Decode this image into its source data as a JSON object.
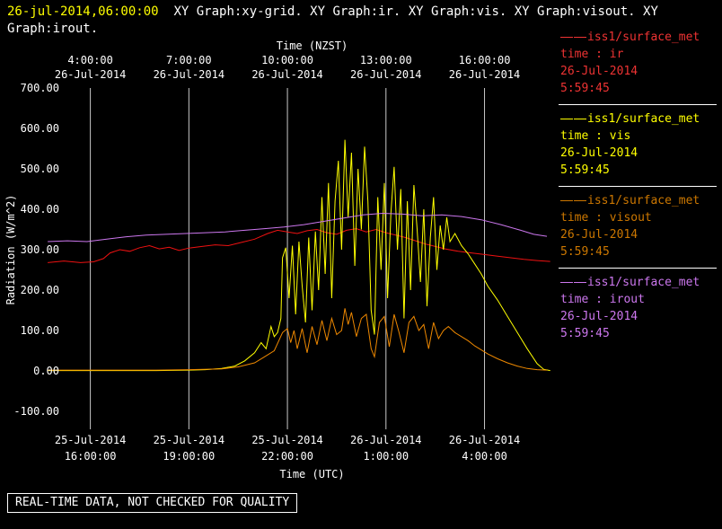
{
  "header": {
    "timestamp": "26-jul-2014,06:00:00",
    "title_rest_line1": "XY Graph:xy-grid.  XY Graph:ir.  XY Graph:vis.  XY Graph:visout.  XY",
    "title_line2": "Graph:irout."
  },
  "colors": {
    "background": "#000000",
    "text": "#ffffff",
    "timestamp": "#ffff00",
    "grid": "#c8c8c8",
    "ir": "#ee1111",
    "vis": "#ffff00",
    "visout": "#ee8800",
    "irout": "#cc77ee"
  },
  "chart_data": {
    "type": "line",
    "grid": true,
    "top_axis": {
      "label": "Time (NZST)",
      "tick_times": [
        "4:00:00",
        "7:00:00",
        "10:00:00",
        "13:00:00",
        "16:00:00"
      ],
      "tick_dates": [
        "26-Jul-2014",
        "26-Jul-2014",
        "26-Jul-2014",
        "26-Jul-2014",
        "26-Jul-2014"
      ]
    },
    "bottom_axis": {
      "label": "Time (UTC)",
      "tick_times": [
        "16:00:00",
        "19:00:00",
        "22:00:00",
        "1:00:00",
        "4:00:00"
      ],
      "tick_dates": [
        "25-Jul-2014",
        "25-Jul-2014",
        "25-Jul-2014",
        "26-Jul-2014",
        "26-Jul-2014"
      ]
    },
    "y_axis": {
      "label": "Radiation  (W/m^2)",
      "tick_values": [
        700,
        600,
        500,
        400,
        300,
        200,
        100,
        0,
        -100
      ],
      "tick_labels": [
        "700.00",
        "600.00",
        "500.00",
        "400.00",
        "300.00",
        "200.00",
        "100.00",
        "0.00",
        "-100.00"
      ],
      "ylim": [
        -100,
        700
      ]
    },
    "x_domain_hours_utc": [
      15.3,
      30.2
    ],
    "gridline_hours_utc": [
      16,
      19,
      22,
      25,
      28
    ],
    "series": [
      {
        "name": "ir",
        "color": "#ee1111",
        "points": [
          [
            14.7,
            268
          ],
          [
            15.2,
            272
          ],
          [
            15.7,
            268
          ],
          [
            16.1,
            270
          ],
          [
            16.4,
            278
          ],
          [
            16.6,
            292
          ],
          [
            16.9,
            300
          ],
          [
            17.2,
            296
          ],
          [
            17.5,
            305
          ],
          [
            17.8,
            310
          ],
          [
            18.1,
            302
          ],
          [
            18.4,
            306
          ],
          [
            18.7,
            298
          ],
          [
            19.0,
            304
          ],
          [
            19.4,
            308
          ],
          [
            19.8,
            312
          ],
          [
            20.2,
            310
          ],
          [
            20.6,
            318
          ],
          [
            21.0,
            326
          ],
          [
            21.4,
            340
          ],
          [
            21.7,
            348
          ],
          [
            22.0,
            344
          ],
          [
            22.3,
            340
          ],
          [
            22.6,
            347
          ],
          [
            22.9,
            350
          ],
          [
            23.2,
            342
          ],
          [
            23.5,
            338
          ],
          [
            23.8,
            348
          ],
          [
            24.1,
            352
          ],
          [
            24.4,
            344
          ],
          [
            24.7,
            350
          ],
          [
            25.0,
            342
          ],
          [
            25.3,
            336
          ],
          [
            25.6,
            330
          ],
          [
            25.9,
            322
          ],
          [
            26.2,
            314
          ],
          [
            26.5,
            308
          ],
          [
            26.8,
            302
          ],
          [
            27.2,
            296
          ],
          [
            27.6,
            292
          ],
          [
            28.0,
            288
          ],
          [
            28.4,
            284
          ],
          [
            28.8,
            280
          ],
          [
            29.2,
            276
          ],
          [
            29.6,
            273
          ],
          [
            30.0,
            271
          ]
        ]
      },
      {
        "name": "vis",
        "color": "#ffff00",
        "points": [
          [
            14.7,
            1
          ],
          [
            16.0,
            1
          ],
          [
            17.0,
            1
          ],
          [
            18.0,
            1
          ],
          [
            19.0,
            2
          ],
          [
            19.5,
            3
          ],
          [
            20.0,
            6
          ],
          [
            20.4,
            12
          ],
          [
            20.7,
            25
          ],
          [
            21.0,
            45
          ],
          [
            21.2,
            70
          ],
          [
            21.35,
            55
          ],
          [
            21.5,
            110
          ],
          [
            21.6,
            85
          ],
          [
            21.7,
            95
          ],
          [
            21.8,
            130
          ],
          [
            21.85,
            280
          ],
          [
            21.95,
            305
          ],
          [
            22.05,
            180
          ],
          [
            22.15,
            310
          ],
          [
            22.25,
            140
          ],
          [
            22.35,
            320
          ],
          [
            22.45,
            210
          ],
          [
            22.55,
            120
          ],
          [
            22.65,
            330
          ],
          [
            22.75,
            150
          ],
          [
            22.85,
            345
          ],
          [
            22.95,
            200
          ],
          [
            23.05,
            430
          ],
          [
            23.15,
            240
          ],
          [
            23.25,
            465
          ],
          [
            23.35,
            180
          ],
          [
            23.45,
            420
          ],
          [
            23.55,
            520
          ],
          [
            23.65,
            300
          ],
          [
            23.75,
            572
          ],
          [
            23.85,
            380
          ],
          [
            23.95,
            540
          ],
          [
            24.05,
            260
          ],
          [
            24.15,
            500
          ],
          [
            24.25,
            350
          ],
          [
            24.35,
            555
          ],
          [
            24.45,
            420
          ],
          [
            24.55,
            150
          ],
          [
            24.65,
            90
          ],
          [
            24.75,
            430
          ],
          [
            24.85,
            250
          ],
          [
            24.95,
            465
          ],
          [
            25.05,
            180
          ],
          [
            25.15,
            390
          ],
          [
            25.25,
            505
          ],
          [
            25.35,
            300
          ],
          [
            25.45,
            450
          ],
          [
            25.55,
            130
          ],
          [
            25.65,
            420
          ],
          [
            25.75,
            200
          ],
          [
            25.85,
            460
          ],
          [
            25.95,
            350
          ],
          [
            26.05,
            220
          ],
          [
            26.15,
            400
          ],
          [
            26.25,
            160
          ],
          [
            26.35,
            330
          ],
          [
            26.45,
            430
          ],
          [
            26.55,
            250
          ],
          [
            26.65,
            360
          ],
          [
            26.75,
            300
          ],
          [
            26.85,
            380
          ],
          [
            26.95,
            320
          ],
          [
            27.1,
            340
          ],
          [
            27.3,
            310
          ],
          [
            27.5,
            290
          ],
          [
            27.7,
            265
          ],
          [
            27.9,
            240
          ],
          [
            28.1,
            210
          ],
          [
            28.4,
            175
          ],
          [
            28.7,
            135
          ],
          [
            29.0,
            95
          ],
          [
            29.3,
            55
          ],
          [
            29.6,
            18
          ],
          [
            29.8,
            4
          ],
          [
            30.0,
            1
          ]
        ]
      },
      {
        "name": "visout",
        "color": "#ee8800",
        "points": [
          [
            14.7,
            2
          ],
          [
            16.0,
            2
          ],
          [
            17.0,
            2
          ],
          [
            18.0,
            2
          ],
          [
            19.0,
            3
          ],
          [
            20.0,
            5
          ],
          [
            20.5,
            10
          ],
          [
            21.0,
            20
          ],
          [
            21.3,
            35
          ],
          [
            21.6,
            50
          ],
          [
            21.85,
            95
          ],
          [
            22.0,
            105
          ],
          [
            22.1,
            70
          ],
          [
            22.2,
            100
          ],
          [
            22.3,
            55
          ],
          [
            22.45,
            105
          ],
          [
            22.6,
            45
          ],
          [
            22.75,
            110
          ],
          [
            22.9,
            65
          ],
          [
            23.05,
            125
          ],
          [
            23.2,
            75
          ],
          [
            23.35,
            130
          ],
          [
            23.5,
            90
          ],
          [
            23.65,
            100
          ],
          [
            23.75,
            155
          ],
          [
            23.85,
            115
          ],
          [
            23.95,
            145
          ],
          [
            24.1,
            85
          ],
          [
            24.25,
            130
          ],
          [
            24.4,
            140
          ],
          [
            24.55,
            55
          ],
          [
            24.65,
            35
          ],
          [
            24.8,
            120
          ],
          [
            24.95,
            135
          ],
          [
            25.1,
            60
          ],
          [
            25.25,
            140
          ],
          [
            25.4,
            95
          ],
          [
            25.55,
            45
          ],
          [
            25.7,
            120
          ],
          [
            25.85,
            135
          ],
          [
            26.0,
            100
          ],
          [
            26.15,
            115
          ],
          [
            26.3,
            55
          ],
          [
            26.45,
            120
          ],
          [
            26.6,
            80
          ],
          [
            26.75,
            100
          ],
          [
            26.9,
            110
          ],
          [
            27.1,
            95
          ],
          [
            27.3,
            85
          ],
          [
            27.5,
            75
          ],
          [
            27.7,
            62
          ],
          [
            27.9,
            52
          ],
          [
            28.1,
            42
          ],
          [
            28.4,
            30
          ],
          [
            28.7,
            20
          ],
          [
            29.0,
            12
          ],
          [
            29.3,
            6
          ],
          [
            29.6,
            3
          ],
          [
            29.9,
            2
          ]
        ]
      },
      {
        "name": "irout",
        "color": "#cc77ee",
        "points": [
          [
            14.7,
            320
          ],
          [
            15.3,
            322
          ],
          [
            15.9,
            320
          ],
          [
            16.5,
            326
          ],
          [
            17.1,
            332
          ],
          [
            17.7,
            336
          ],
          [
            18.3,
            338
          ],
          [
            18.9,
            340
          ],
          [
            19.5,
            342
          ],
          [
            20.1,
            344
          ],
          [
            20.7,
            348
          ],
          [
            21.3,
            352
          ],
          [
            21.9,
            356
          ],
          [
            22.5,
            362
          ],
          [
            23.1,
            370
          ],
          [
            23.7,
            378
          ],
          [
            24.3,
            386
          ],
          [
            24.9,
            390
          ],
          [
            25.5,
            388
          ],
          [
            26.1,
            384
          ],
          [
            26.7,
            386
          ],
          [
            27.3,
            382
          ],
          [
            27.9,
            374
          ],
          [
            28.5,
            362
          ],
          [
            29.1,
            348
          ],
          [
            29.5,
            338
          ],
          [
            29.9,
            333
          ]
        ]
      }
    ]
  },
  "legend": {
    "entries": [
      {
        "source": "iss1/surface_met",
        "field": "time : ir",
        "date": "26-Jul-2014",
        "time": "5:59:45",
        "color": "#ee3333"
      },
      {
        "source": "iss1/surface_met",
        "field": "time : vis",
        "date": "26-Jul-2014",
        "time": "5:59:45",
        "color": "#ffff00"
      },
      {
        "source": "iss1/surface_met",
        "field": "time : visout",
        "date": "26-Jul-2014",
        "time": "5:59:45",
        "color": "#cc7700"
      },
      {
        "source": "iss1/surface_met",
        "field": "time : irout",
        "date": "26-Jul-2014",
        "time": "5:59:45",
        "color": "#cc77ee"
      }
    ]
  },
  "footer": {
    "banner": "REAL-TIME DATA, NOT CHECKED FOR QUALITY"
  }
}
